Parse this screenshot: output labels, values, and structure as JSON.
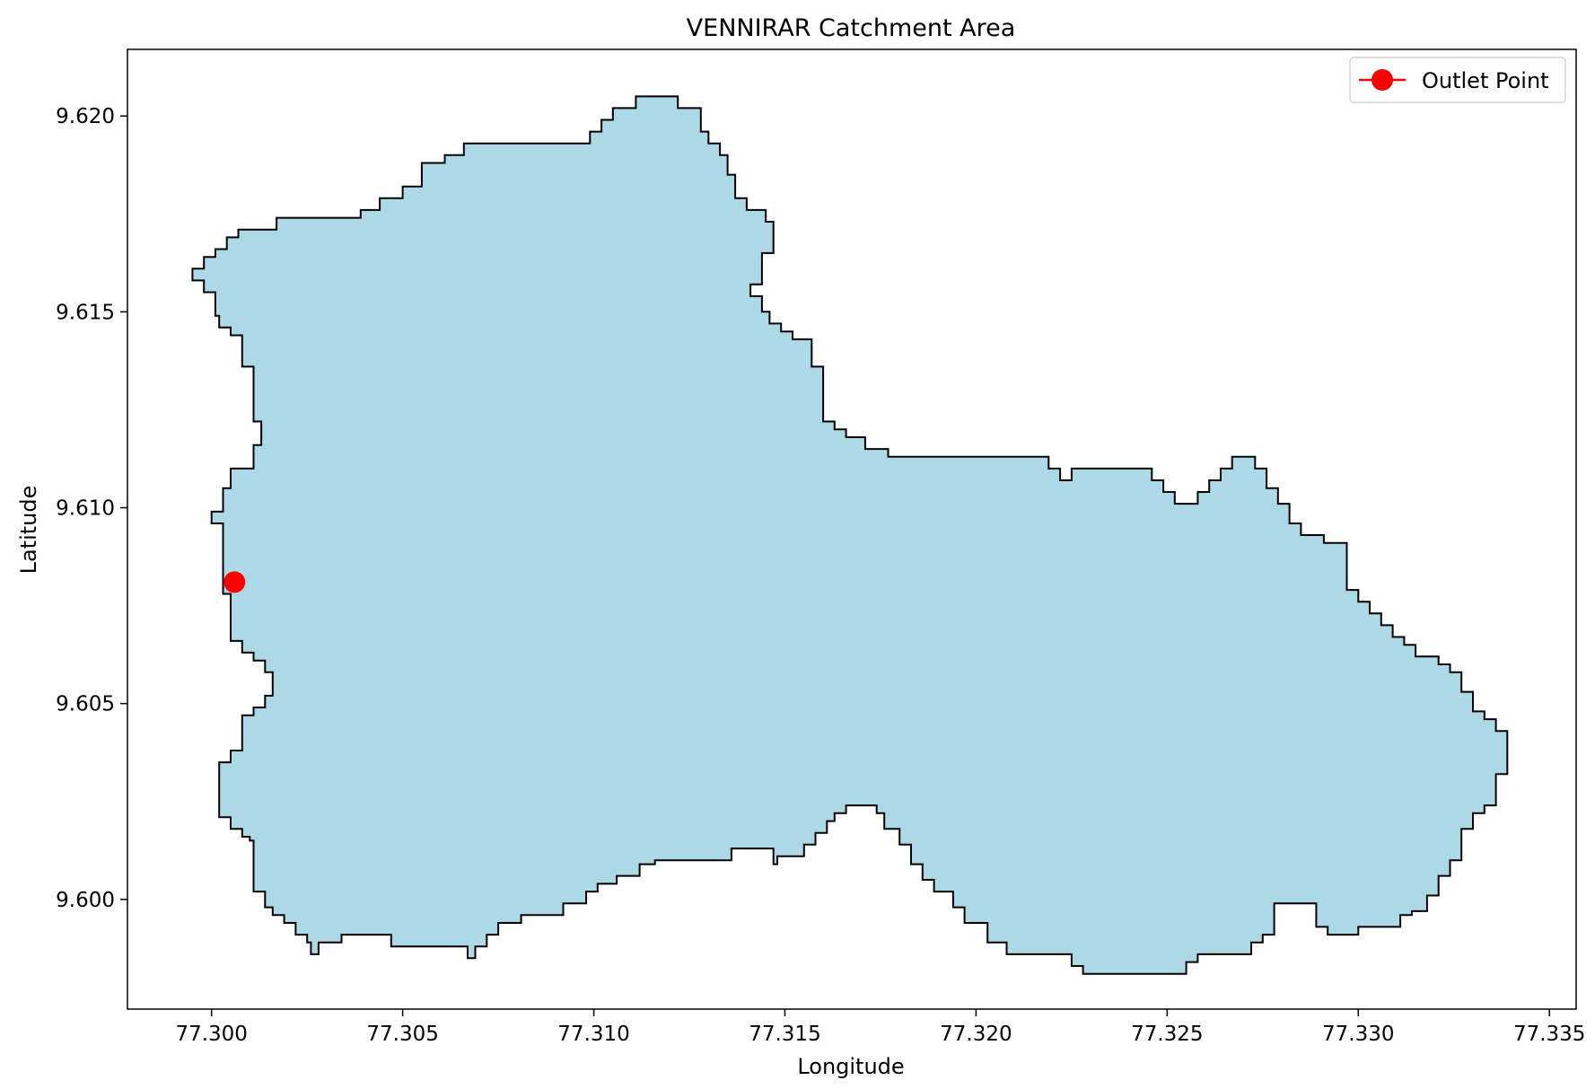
{
  "chart_data": {
    "type": "area",
    "title": "VENNIRAR Catchment Area",
    "xlabel": "Longitude",
    "ylabel": "Latitude",
    "xlim": [
      77.2978,
      77.3357
    ],
    "ylim": [
      9.5972,
      9.6217
    ],
    "x_ticks": [
      77.3,
      77.305,
      77.31,
      77.315,
      77.32,
      77.325,
      77.33,
      77.335
    ],
    "x_tick_labels": [
      "77.300",
      "77.305",
      "77.310",
      "77.315",
      "77.320",
      "77.325",
      "77.330",
      "77.335"
    ],
    "y_ticks": [
      9.6,
      9.605,
      9.61,
      9.615,
      9.62
    ],
    "y_tick_labels": [
      "9.600",
      "9.605",
      "9.610",
      "9.615",
      "9.620"
    ],
    "grid": false,
    "legend": {
      "placement": "top-right",
      "entries": [
        "Outlet Point"
      ]
    },
    "catchment": {
      "fill": "#add8e6",
      "stroke": "#000000",
      "boundary": [
        [
          77.2995,
          9.6158
        ],
        [
          77.2995,
          9.6161
        ],
        [
          77.2998,
          9.6161
        ],
        [
          77.2998,
          9.6164
        ],
        [
          77.3001,
          9.6164
        ],
        [
          77.3001,
          9.6166
        ],
        [
          77.3004,
          9.6166
        ],
        [
          77.3004,
          9.6169
        ],
        [
          77.3007,
          9.6169
        ],
        [
          77.3007,
          9.6171
        ],
        [
          77.3017,
          9.6171
        ],
        [
          77.3017,
          9.6174
        ],
        [
          77.3039,
          9.6174
        ],
        [
          77.3039,
          9.6176
        ],
        [
          77.3044,
          9.6176
        ],
        [
          77.3044,
          9.6179
        ],
        [
          77.305,
          9.6179
        ],
        [
          77.305,
          9.6182
        ],
        [
          77.3055,
          9.6182
        ],
        [
          77.3055,
          9.6188
        ],
        [
          77.3061,
          9.6188
        ],
        [
          77.3061,
          9.619
        ],
        [
          77.3066,
          9.619
        ],
        [
          77.3066,
          9.6193
        ],
        [
          77.3099,
          9.6193
        ],
        [
          77.3099,
          9.6196
        ],
        [
          77.3102,
          9.6196
        ],
        [
          77.3102,
          9.6199
        ],
        [
          77.3105,
          9.6199
        ],
        [
          77.3105,
          9.6202
        ],
        [
          77.3111,
          9.6202
        ],
        [
          77.3111,
          9.6205
        ],
        [
          77.3122,
          9.6205
        ],
        [
          77.3122,
          9.6202
        ],
        [
          77.3128,
          9.6202
        ],
        [
          77.3128,
          9.6196
        ],
        [
          77.313,
          9.6196
        ],
        [
          77.313,
          9.6193
        ],
        [
          77.3133,
          9.6193
        ],
        [
          77.3133,
          9.619
        ],
        [
          77.3135,
          9.619
        ],
        [
          77.3135,
          9.6185
        ],
        [
          77.3137,
          9.6185
        ],
        [
          77.3137,
          9.6179
        ],
        [
          77.314,
          9.6179
        ],
        [
          77.314,
          9.6176
        ],
        [
          77.3145,
          9.6176
        ],
        [
          77.3145,
          9.6173
        ],
        [
          77.3147,
          9.6173
        ],
        [
          77.3147,
          9.6165
        ],
        [
          77.3144,
          9.6165
        ],
        [
          77.3144,
          9.6157
        ],
        [
          77.3141,
          9.6157
        ],
        [
          77.3141,
          9.6154
        ],
        [
          77.3144,
          9.6154
        ],
        [
          77.3144,
          9.615
        ],
        [
          77.3146,
          9.615
        ],
        [
          77.3146,
          9.6147
        ],
        [
          77.3149,
          9.6147
        ],
        [
          77.3149,
          9.6145
        ],
        [
          77.3152,
          9.6145
        ],
        [
          77.3152,
          9.6143
        ],
        [
          77.3157,
          9.6143
        ],
        [
          77.3157,
          9.6136
        ],
        [
          77.316,
          9.6136
        ],
        [
          77.316,
          9.6122
        ],
        [
          77.3163,
          9.6122
        ],
        [
          77.3163,
          9.612
        ],
        [
          77.3166,
          9.612
        ],
        [
          77.3166,
          9.6118
        ],
        [
          77.3171,
          9.6118
        ],
        [
          77.3171,
          9.6115
        ],
        [
          77.3177,
          9.6115
        ],
        [
          77.3177,
          9.6113
        ],
        [
          77.3219,
          9.6113
        ],
        [
          77.3219,
          9.611
        ],
        [
          77.3222,
          9.611
        ],
        [
          77.3222,
          9.6107
        ],
        [
          77.3225,
          9.6107
        ],
        [
          77.3225,
          9.611
        ],
        [
          77.3246,
          9.611
        ],
        [
          77.3246,
          9.6107
        ],
        [
          77.3249,
          9.6107
        ],
        [
          77.3249,
          9.6104
        ],
        [
          77.3252,
          9.6104
        ],
        [
          77.3252,
          9.6101
        ],
        [
          77.3258,
          9.6101
        ],
        [
          77.3258,
          9.6104
        ],
        [
          77.3261,
          9.6104
        ],
        [
          77.3261,
          9.6107
        ],
        [
          77.3264,
          9.6107
        ],
        [
          77.3264,
          9.611
        ],
        [
          77.3267,
          9.611
        ],
        [
          77.3267,
          9.6113
        ],
        [
          77.3273,
          9.6113
        ],
        [
          77.3273,
          9.611
        ],
        [
          77.3276,
          9.611
        ],
        [
          77.3276,
          9.6105
        ],
        [
          77.3279,
          9.6105
        ],
        [
          77.3279,
          9.6101
        ],
        [
          77.3282,
          9.6101
        ],
        [
          77.3282,
          9.6096
        ],
        [
          77.3285,
          9.6096
        ],
        [
          77.3285,
          9.6093
        ],
        [
          77.3291,
          9.6093
        ],
        [
          77.3291,
          9.6091
        ],
        [
          77.3297,
          9.6091
        ],
        [
          77.3297,
          9.6079
        ],
        [
          77.33,
          9.6079
        ],
        [
          77.33,
          9.6076
        ],
        [
          77.3303,
          9.6076
        ],
        [
          77.3303,
          9.6073
        ],
        [
          77.3306,
          9.6073
        ],
        [
          77.3306,
          9.607
        ],
        [
          77.3309,
          9.607
        ],
        [
          77.3309,
          9.6067
        ],
        [
          77.3312,
          9.6067
        ],
        [
          77.3312,
          9.6065
        ],
        [
          77.3315,
          9.6065
        ],
        [
          77.3315,
          9.6062
        ],
        [
          77.3321,
          9.6062
        ],
        [
          77.3321,
          9.606
        ],
        [
          77.3324,
          9.606
        ],
        [
          77.3324,
          9.6058
        ],
        [
          77.3327,
          9.6058
        ],
        [
          77.3327,
          9.6053
        ],
        [
          77.333,
          9.6053
        ],
        [
          77.333,
          9.6048
        ],
        [
          77.3333,
          9.6048
        ],
        [
          77.3333,
          9.6046
        ],
        [
          77.3336,
          9.6046
        ],
        [
          77.3336,
          9.6043
        ],
        [
          77.3339,
          9.6043
        ],
        [
          77.3339,
          9.6032
        ],
        [
          77.3336,
          9.6032
        ],
        [
          77.3336,
          9.6024
        ],
        [
          77.3333,
          9.6024
        ],
        [
          77.3333,
          9.6022
        ],
        [
          77.333,
          9.6022
        ],
        [
          77.333,
          9.6018
        ],
        [
          77.3327,
          9.6018
        ],
        [
          77.3327,
          9.601
        ],
        [
          77.3324,
          9.601
        ],
        [
          77.3324,
          9.6006
        ],
        [
          77.3321,
          9.6006
        ],
        [
          77.3321,
          9.6001
        ],
        [
          77.3318,
          9.6001
        ],
        [
          77.3318,
          9.5997
        ],
        [
          77.3314,
          9.5997
        ],
        [
          77.3314,
          9.5996
        ],
        [
          77.3311,
          9.5996
        ],
        [
          77.3311,
          9.5993
        ],
        [
          77.33,
          9.5993
        ],
        [
          77.33,
          9.5991
        ],
        [
          77.3292,
          9.5991
        ],
        [
          77.3292,
          9.5993
        ],
        [
          77.3289,
          9.5993
        ],
        [
          77.3289,
          9.5999
        ],
        [
          77.3278,
          9.5999
        ],
        [
          77.3278,
          9.5991
        ],
        [
          77.3275,
          9.5991
        ],
        [
          77.3275,
          9.5989
        ],
        [
          77.3272,
          9.5989
        ],
        [
          77.3272,
          9.5986
        ],
        [
          77.3258,
          9.5986
        ],
        [
          77.3258,
          9.5984
        ],
        [
          77.3255,
          9.5984
        ],
        [
          77.3255,
          9.5981
        ],
        [
          77.3228,
          9.5981
        ],
        [
          77.3228,
          9.5983
        ],
        [
          77.3225,
          9.5983
        ],
        [
          77.3225,
          9.5986
        ],
        [
          77.3208,
          9.5986
        ],
        [
          77.3208,
          9.5989
        ],
        [
          77.3203,
          9.5989
        ],
        [
          77.3203,
          9.5994
        ],
        [
          77.3197,
          9.5994
        ],
        [
          77.3197,
          9.5998
        ],
        [
          77.3194,
          9.5998
        ],
        [
          77.3194,
          9.6002
        ],
        [
          77.3189,
          9.6002
        ],
        [
          77.3189,
          9.6005
        ],
        [
          77.3186,
          9.6005
        ],
        [
          77.3186,
          9.6009
        ],
        [
          77.3183,
          9.6009
        ],
        [
          77.3183,
          9.6014
        ],
        [
          77.318,
          9.6014
        ],
        [
          77.318,
          9.6018
        ],
        [
          77.3176,
          9.6018
        ],
        [
          77.3176,
          9.6022
        ],
        [
          77.3174,
          9.6022
        ],
        [
          77.3174,
          9.6024
        ],
        [
          77.3166,
          9.6024
        ],
        [
          77.3166,
          9.6022
        ],
        [
          77.3163,
          9.6022
        ],
        [
          77.3163,
          9.602
        ],
        [
          77.3161,
          9.602
        ],
        [
          77.3161,
          9.6017
        ],
        [
          77.3158,
          9.6017
        ],
        [
          77.3158,
          9.6014
        ],
        [
          77.3155,
          9.6014
        ],
        [
          77.3155,
          9.6011
        ],
        [
          77.3148,
          9.6011
        ],
        [
          77.3148,
          9.6009
        ],
        [
          77.3147,
          9.6009
        ],
        [
          77.3147,
          9.6013
        ],
        [
          77.3136,
          9.6013
        ],
        [
          77.3136,
          9.601
        ],
        [
          77.3116,
          9.601
        ],
        [
          77.3116,
          9.6009
        ],
        [
          77.3112,
          9.6009
        ],
        [
          77.3112,
          9.6006
        ],
        [
          77.3106,
          9.6006
        ],
        [
          77.3106,
          9.6004
        ],
        [
          77.3101,
          9.6004
        ],
        [
          77.3101,
          9.6002
        ],
        [
          77.3098,
          9.6002
        ],
        [
          77.3098,
          9.5999
        ],
        [
          77.3092,
          9.5999
        ],
        [
          77.3092,
          9.5996
        ],
        [
          77.3081,
          9.5996
        ],
        [
          77.3081,
          9.5994
        ],
        [
          77.3075,
          9.5994
        ],
        [
          77.3075,
          9.5991
        ],
        [
          77.3072,
          9.5991
        ],
        [
          77.3072,
          9.5988
        ],
        [
          77.3069,
          9.5988
        ],
        [
          77.3069,
          9.5985
        ],
        [
          77.3067,
          9.5985
        ],
        [
          77.3067,
          9.5988
        ],
        [
          77.3047,
          9.5988
        ],
        [
          77.3047,
          9.5991
        ],
        [
          77.3034,
          9.5991
        ],
        [
          77.3034,
          9.5989
        ],
        [
          77.3028,
          9.5989
        ],
        [
          77.3028,
          9.5986
        ],
        [
          77.3026,
          9.5986
        ],
        [
          77.3026,
          9.5989
        ],
        [
          77.3025,
          9.5989
        ],
        [
          77.3025,
          9.5991
        ],
        [
          77.3022,
          9.5991
        ],
        [
          77.3022,
          9.5994
        ],
        [
          77.3019,
          9.5994
        ],
        [
          77.3019,
          9.5996
        ],
        [
          77.3016,
          9.5996
        ],
        [
          77.3016,
          9.5998
        ],
        [
          77.3014,
          9.5998
        ],
        [
          77.3014,
          9.6002
        ],
        [
          77.3011,
          9.6002
        ],
        [
          77.3011,
          9.6015
        ],
        [
          77.301,
          9.6015
        ],
        [
          77.301,
          9.6016
        ],
        [
          77.3008,
          9.6016
        ],
        [
          77.3008,
          9.6018
        ],
        [
          77.3005,
          9.6018
        ],
        [
          77.3005,
          9.6021
        ],
        [
          77.3002,
          9.6021
        ],
        [
          77.3002,
          9.6035
        ],
        [
          77.3005,
          9.6035
        ],
        [
          77.3005,
          9.6038
        ],
        [
          77.3008,
          9.6038
        ],
        [
          77.3008,
          9.6047
        ],
        [
          77.3011,
          9.6047
        ],
        [
          77.3011,
          9.6049
        ],
        [
          77.3014,
          9.6049
        ],
        [
          77.3014,
          9.6052
        ],
        [
          77.3016,
          9.6052
        ],
        [
          77.3016,
          9.6058
        ],
        [
          77.3014,
          9.6058
        ],
        [
          77.3014,
          9.6061
        ],
        [
          77.3011,
          9.6061
        ],
        [
          77.3011,
          9.6063
        ],
        [
          77.3008,
          9.6063
        ],
        [
          77.3008,
          9.6066
        ],
        [
          77.3005,
          9.6066
        ],
        [
          77.3005,
          9.6078
        ],
        [
          77.3003,
          9.6078
        ],
        [
          77.3003,
          9.6096
        ],
        [
          77.3,
          9.6096
        ],
        [
          77.3,
          9.6099
        ],
        [
          77.3003,
          9.6099
        ],
        [
          77.3003,
          9.6105
        ],
        [
          77.3005,
          9.6105
        ],
        [
          77.3005,
          9.611
        ],
        [
          77.3011,
          9.611
        ],
        [
          77.3011,
          9.6116
        ],
        [
          77.3013,
          9.6116
        ],
        [
          77.3013,
          9.6122
        ],
        [
          77.3011,
          9.6122
        ],
        [
          77.3011,
          9.6136
        ],
        [
          77.3008,
          9.6136
        ],
        [
          77.3008,
          9.6144
        ],
        [
          77.3005,
          9.6144
        ],
        [
          77.3005,
          9.6146
        ],
        [
          77.3002,
          9.6146
        ],
        [
          77.3002,
          9.6149
        ],
        [
          77.3001,
          9.6149
        ],
        [
          77.3001,
          9.6155
        ],
        [
          77.2998,
          9.6155
        ],
        [
          77.2998,
          9.6158
        ],
        [
          77.2995,
          9.6158
        ]
      ]
    },
    "outlet_point": {
      "name": "Outlet Point",
      "x": 77.3006,
      "y": 9.6081,
      "color": "#ff0000"
    }
  }
}
